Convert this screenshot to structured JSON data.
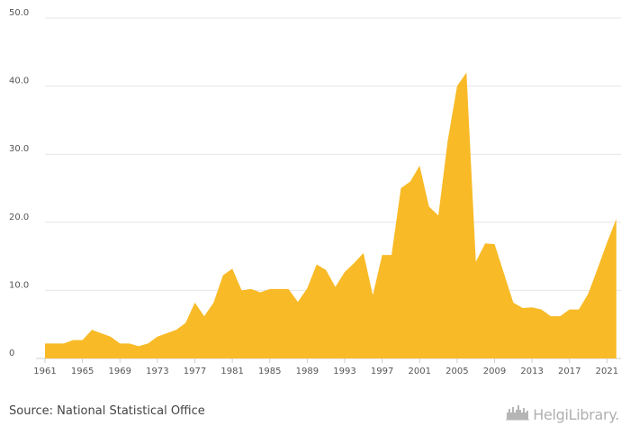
{
  "chart_data": {
    "type": "area",
    "title": "",
    "xlabel": "",
    "ylabel": "",
    "x": [
      1961,
      1962,
      1963,
      1964,
      1965,
      1966,
      1967,
      1968,
      1969,
      1970,
      1971,
      1972,
      1973,
      1974,
      1975,
      1976,
      1977,
      1978,
      1979,
      1980,
      1981,
      1982,
      1983,
      1984,
      1985,
      1986,
      1987,
      1988,
      1989,
      1990,
      1991,
      1992,
      1993,
      1994,
      1995,
      1996,
      1997,
      1998,
      1999,
      2000,
      2001,
      2002,
      2003,
      2004,
      2005,
      2006,
      2007,
      2008,
      2009,
      2010,
      2011,
      2012,
      2013,
      2014,
      2015,
      2016,
      2017,
      2018,
      2019,
      2020,
      2021,
      2022
    ],
    "values": [
      2.2,
      2.2,
      2.2,
      2.7,
      2.7,
      4.2,
      3.7,
      3.2,
      2.2,
      2.2,
      1.8,
      2.2,
      3.2,
      3.7,
      4.2,
      5.2,
      8.2,
      6.2,
      8.2,
      12.2,
      13.2,
      10.0,
      10.2,
      9.7,
      10.2,
      10.2,
      10.2,
      8.3,
      10.3,
      13.8,
      13.0,
      10.5,
      12.7,
      14.0,
      15.5,
      9.3,
      15.2,
      15.2,
      25.0,
      26.0,
      28.3,
      22.3,
      21.0,
      32.0,
      40.0,
      42.0,
      14.2,
      16.9,
      16.8,
      12.5,
      8.2,
      7.4,
      7.5,
      7.2,
      6.2,
      6.2,
      7.2,
      7.2,
      9.5,
      13.2,
      17.0,
      20.5
    ],
    "ylim": [
      0,
      50
    ],
    "y_ticks": [
      "0",
      "10.0",
      "20.0",
      "30.0",
      "40.0",
      "50.0"
    ],
    "x_tick_labels": [
      "1961",
      "1965",
      "1969",
      "1973",
      "1977",
      "1981",
      "1985",
      "1989",
      "1993",
      "1997",
      "2001",
      "2005",
      "2009",
      "2013",
      "2017",
      "2021"
    ],
    "grid": true,
    "legend": "none",
    "fill_color": "#F8BA26",
    "grid_color": "#e6e6e6"
  },
  "footer": {
    "source": "Source: National Statistical Office"
  },
  "logo": {
    "text": "HelgiLibrary.",
    "icon": "city-skyline-icon"
  }
}
